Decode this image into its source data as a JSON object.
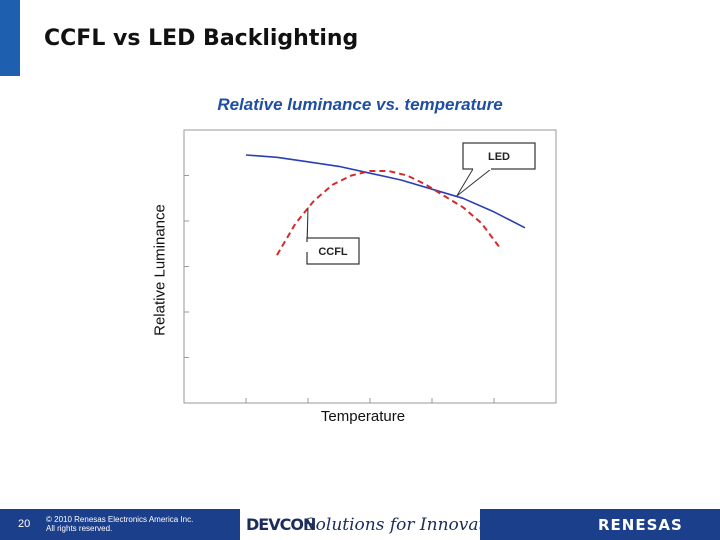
{
  "slide": {
    "title": "CCFL vs LED Backlighting",
    "page_number": "20"
  },
  "chart_data": {
    "type": "line",
    "title": "Relative luminance vs. temperature",
    "xlabel": "Temperature",
    "ylabel": "Relative Luminance",
    "xlim": [
      0,
      6
    ],
    "ylim": [
      0,
      6
    ],
    "grid": false,
    "series": [
      {
        "name": "LED",
        "color": "#2a3fb5",
        "style": "solid",
        "x": [
          1.0,
          1.5,
          2.0,
          2.5,
          3.0,
          3.5,
          4.0,
          4.5,
          5.0,
          5.5
        ],
        "y": [
          5.45,
          5.4,
          5.3,
          5.2,
          5.05,
          4.9,
          4.7,
          4.5,
          4.2,
          3.85
        ]
      },
      {
        "name": "CCFL",
        "color": "#d42a2a",
        "style": "dashed",
        "x": [
          1.5,
          1.8,
          2.1,
          2.4,
          2.7,
          3.0,
          3.3,
          3.6,
          3.9,
          4.2,
          4.5,
          4.8,
          5.1
        ],
        "y": [
          3.25,
          3.95,
          4.45,
          4.8,
          5.0,
          5.1,
          5.1,
          5.0,
          4.8,
          4.55,
          4.3,
          3.95,
          3.4
        ]
      }
    ],
    "annotations": [
      {
        "label": "LED",
        "series": "LED"
      },
      {
        "label": "CCFL",
        "series": "CCFL"
      }
    ]
  },
  "footer": {
    "copyright_line1": "© 2010 Renesas Electronics America Inc.",
    "copyright_line2": "All rights reserved.",
    "devcon_logo": "DEVCON",
    "tagline": "Solutions for Innovation",
    "renesas_logo": "RENESAS",
    "bar_color": "#1c3f8c"
  }
}
